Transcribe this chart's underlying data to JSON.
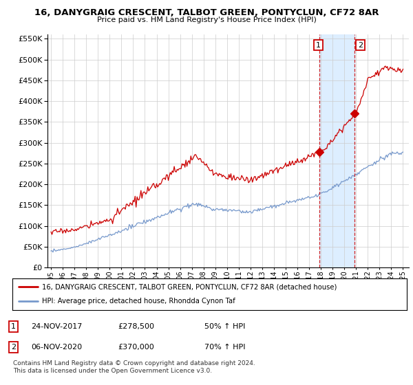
{
  "title": "16, DANYGRAIG CRESCENT, TALBOT GREEN, PONTYCLUN, CF72 8AR",
  "subtitle": "Price paid vs. HM Land Registry's House Price Index (HPI)",
  "legend_line1": "16, DANYGRAIG CRESCENT, TALBOT GREEN, PONTYCLUN, CF72 8AR (detached house)",
  "legend_line2": "HPI: Average price, detached house, Rhondda Cynon Taf",
  "annotation1_date": "24-NOV-2017",
  "annotation1_price": "£278,500",
  "annotation1_hpi": "50% ↑ HPI",
  "annotation2_date": "06-NOV-2020",
  "annotation2_price": "£370,000",
  "annotation2_hpi": "70% ↑ HPI",
  "footnote": "Contains HM Land Registry data © Crown copyright and database right 2024.\nThis data is licensed under the Open Government Licence v3.0.",
  "sale1_x": 2017.9,
  "sale1_y": 278500,
  "sale2_x": 2020.85,
  "sale2_y": 370000,
  "vline1_x": 2017.9,
  "vline2_x": 2020.85,
  "red_color": "#cc0000",
  "blue_color": "#7799cc",
  "vline_color": "#cc0000",
  "span_color": "#ddeeff",
  "ylim": [
    0,
    560000
  ],
  "xlim_start": 1994.7,
  "xlim_end": 2025.5
}
